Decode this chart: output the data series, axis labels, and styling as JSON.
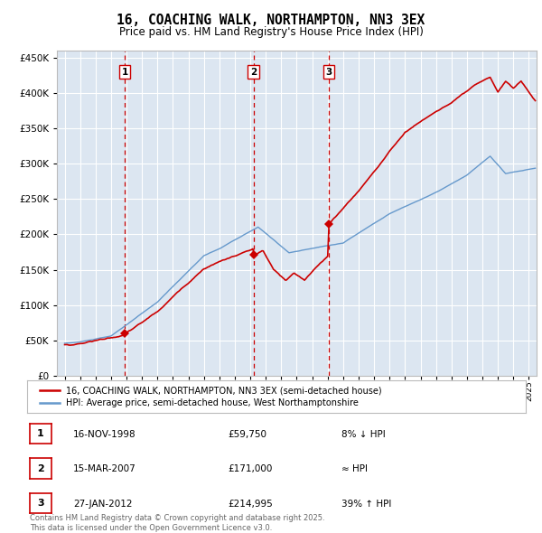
{
  "title": "16, COACHING WALK, NORTHAMPTON, NN3 3EX",
  "subtitle": "Price paid vs. HM Land Registry's House Price Index (HPI)",
  "legend_line1": "16, COACHING WALK, NORTHAMPTON, NN3 3EX (semi-detached house)",
  "legend_line2": "HPI: Average price, semi-detached house, West Northamptonshire",
  "footer1": "Contains HM Land Registry data © Crown copyright and database right 2025.",
  "footer2": "This data is licensed under the Open Government Licence v3.0.",
  "transactions": [
    {
      "num": 1,
      "date": "16-NOV-1998",
      "price": 59750,
      "year": 1998.88,
      "relation": "8% ↓ HPI"
    },
    {
      "num": 2,
      "date": "15-MAR-2007",
      "price": 171000,
      "year": 2007.21,
      "relation": "≈ HPI"
    },
    {
      "num": 3,
      "date": "27-JAN-2012",
      "price": 214995,
      "year": 2012.07,
      "relation": "39% ↑ HPI"
    }
  ],
  "price_color": "#cc0000",
  "hpi_color": "#6699cc",
  "vline_color": "#cc0000",
  "plot_bg_color": "#dce6f1",
  "ylim": [
    0,
    460000
  ],
  "yticks": [
    0,
    50000,
    100000,
    150000,
    200000,
    250000,
    300000,
    350000,
    400000,
    450000
  ],
  "xlim_start": 1994.5,
  "xlim_end": 2025.5
}
